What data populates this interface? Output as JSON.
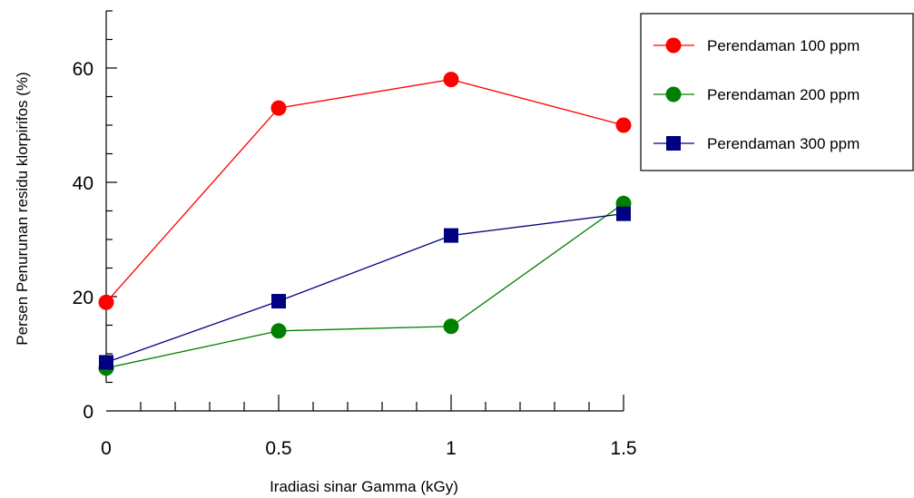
{
  "chart_data": {
    "type": "line",
    "title": "",
    "xlabel": "Iradiasi sinar Gamma (kGy)",
    "ylabel": "Persen Penurunan residu klorpirifos (%)",
    "x": [
      0,
      0.5,
      1,
      1.5
    ],
    "x_tick_labels": [
      "0",
      "0.5",
      "1",
      "1.5"
    ],
    "y_tick_labels": [
      "0",
      "20",
      "40",
      "60"
    ],
    "xlim": [
      0,
      1.5
    ],
    "ylim": [
      0,
      70
    ],
    "grid": false,
    "legend_position": "top-right",
    "series": [
      {
        "name": "Perendaman 100 ppm",
        "values": [
          19,
          53,
          58,
          50
        ],
        "color": "#ff0000",
        "marker": "circle"
      },
      {
        "name": "Perendaman 200 ppm",
        "values": [
          7.5,
          14,
          14.8,
          36.3
        ],
        "color": "#008000",
        "marker": "circle"
      },
      {
        "name": "Perendaman 300 ppm",
        "values": [
          8.5,
          19.2,
          30.7,
          34.5
        ],
        "color": "#000080",
        "marker": "square"
      }
    ]
  }
}
